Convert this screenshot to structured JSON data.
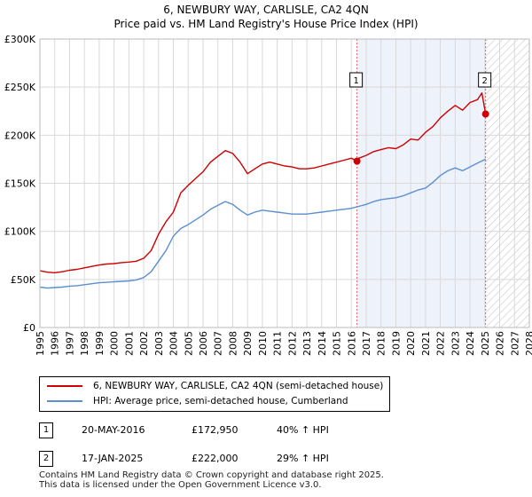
{
  "chart_data": {
    "type": "line",
    "title": "6, NEWBURY WAY, CARLISLE, CA2 4QN",
    "subtitle": "Price paid vs. HM Land Registry's House Price Index (HPI)",
    "ylabel": "",
    "xlabel": "",
    "xlim": [
      1995,
      2028
    ],
    "ylim": [
      0,
      300000
    ],
    "y_ticks": [
      {
        "value": 0,
        "label": "£0"
      },
      {
        "value": 50000,
        "label": "£50K"
      },
      {
        "value": 100000,
        "label": "£100K"
      },
      {
        "value": 150000,
        "label": "£150K"
      },
      {
        "value": 200000,
        "label": "£200K"
      },
      {
        "value": 250000,
        "label": "£250K"
      },
      {
        "value": 300000,
        "label": "£300K"
      }
    ],
    "x_ticks": [
      "1995",
      "1996",
      "1997",
      "1998",
      "1999",
      "2000",
      "2001",
      "2002",
      "2003",
      "2004",
      "2005",
      "2006",
      "2007",
      "2008",
      "2009",
      "2010",
      "2011",
      "2012",
      "2013",
      "2014",
      "2015",
      "2016",
      "2017",
      "2018",
      "2019",
      "2020",
      "2021",
      "2022",
      "2023",
      "2024",
      "2025",
      "2026",
      "2027",
      "2028"
    ],
    "shaded_period": {
      "start": 2016.38,
      "end": 2025.05
    },
    "forecast_hatch_start": 2025.05,
    "series": [
      {
        "name": "6, NEWBURY WAY, CARLISLE, CA2 4QN (semi-detached house)",
        "color": "#cc0000",
        "x": [
          1995.0,
          1995.5,
          1996.0,
          1996.5,
          1997.0,
          1997.5,
          1998.0,
          1998.5,
          1999.0,
          1999.5,
          2000.0,
          2000.5,
          2001.0,
          2001.5,
          2002.0,
          2002.5,
          2003.0,
          2003.5,
          2004.0,
          2004.5,
          2005.0,
          2005.5,
          2006.0,
          2006.5,
          2007.0,
          2007.5,
          2008.0,
          2008.5,
          2009.0,
          2009.5,
          2010.0,
          2010.5,
          2011.0,
          2011.5,
          2012.0,
          2012.5,
          2013.0,
          2013.5,
          2014.0,
          2014.5,
          2015.0,
          2015.5,
          2016.0,
          2016.38,
          2016.5,
          2017.0,
          2017.5,
          2018.0,
          2018.5,
          2019.0,
          2019.5,
          2020.0,
          2020.5,
          2021.0,
          2021.5,
          2022.0,
          2022.5,
          2023.0,
          2023.5,
          2024.0,
          2024.5,
          2024.8,
          2025.05
        ],
        "values": [
          59000,
          57500,
          57000,
          58000,
          59500,
          60500,
          62000,
          63500,
          65000,
          66000,
          66500,
          67500,
          68000,
          69000,
          72000,
          80000,
          97000,
          110000,
          120000,
          140000,
          148000,
          155000,
          162000,
          172000,
          178000,
          184000,
          181000,
          172000,
          160000,
          165000,
          170000,
          172000,
          170000,
          168000,
          167000,
          165000,
          165000,
          166000,
          168000,
          170000,
          172000,
          174000,
          176000,
          172950,
          176000,
          179000,
          183000,
          185000,
          187000,
          186000,
          190000,
          196000,
          195000,
          203000,
          209000,
          218000,
          225000,
          231000,
          226000,
          234000,
          237000,
          244000,
          222000
        ]
      },
      {
        "name": "HPI: Average price, semi-detached house, Cumberland",
        "color": "#5b8fd1",
        "x": [
          1995.0,
          1995.5,
          1996.0,
          1996.5,
          1997.0,
          1997.5,
          1998.0,
          1998.5,
          1999.0,
          1999.5,
          2000.0,
          2000.5,
          2001.0,
          2001.5,
          2002.0,
          2002.5,
          2003.0,
          2003.5,
          2004.0,
          2004.5,
          2005.0,
          2005.5,
          2006.0,
          2006.5,
          2007.0,
          2007.5,
          2008.0,
          2008.5,
          2009.0,
          2009.5,
          2010.0,
          2010.5,
          2011.0,
          2011.5,
          2012.0,
          2012.5,
          2013.0,
          2013.5,
          2014.0,
          2014.5,
          2015.0,
          2015.5,
          2016.0,
          2016.5,
          2017.0,
          2017.5,
          2018.0,
          2018.5,
          2019.0,
          2019.5,
          2020.0,
          2020.5,
          2021.0,
          2021.5,
          2022.0,
          2022.5,
          2023.0,
          2023.5,
          2024.0,
          2024.5,
          2025.05
        ],
        "values": [
          42000,
          41000,
          41500,
          42000,
          43000,
          43500,
          44500,
          45500,
          46500,
          47000,
          47500,
          48000,
          48500,
          49500,
          52000,
          58000,
          69000,
          80000,
          95000,
          103000,
          107000,
          112000,
          117000,
          123000,
          127000,
          131000,
          128000,
          122000,
          117000,
          120000,
          122000,
          121000,
          120000,
          119000,
          118000,
          118000,
          118000,
          119000,
          120000,
          121000,
          122000,
          123000,
          124000,
          126000,
          128000,
          131000,
          133000,
          134000,
          135000,
          137000,
          140000,
          143000,
          145000,
          151000,
          158000,
          163000,
          166000,
          163000,
          167000,
          171000,
          175000
        ]
      }
    ],
    "sales": [
      {
        "label": "1",
        "x": 2016.38,
        "value": 172950
      },
      {
        "label": "2",
        "x": 2025.05,
        "value": 222000
      }
    ]
  },
  "legend": [
    {
      "label": "6, NEWBURY WAY, CARLISLE, CA2 4QN (semi-detached house)",
      "color": "#cc0000"
    },
    {
      "label": "HPI: Average price, semi-detached house, Cumberland",
      "color": "#5b8fd1"
    }
  ],
  "sales_table": [
    {
      "num": "1",
      "date": "20-MAY-2016",
      "price": "£172,950",
      "hpi": "40% ↑ HPI"
    },
    {
      "num": "2",
      "date": "17-JAN-2025",
      "price": "£222,000",
      "hpi": "29% ↑ HPI"
    }
  ],
  "footer": {
    "line1": "Contains HM Land Registry data © Crown copyright and database right 2025.",
    "line2": "This data is licensed under the Open Government Licence v3.0."
  }
}
